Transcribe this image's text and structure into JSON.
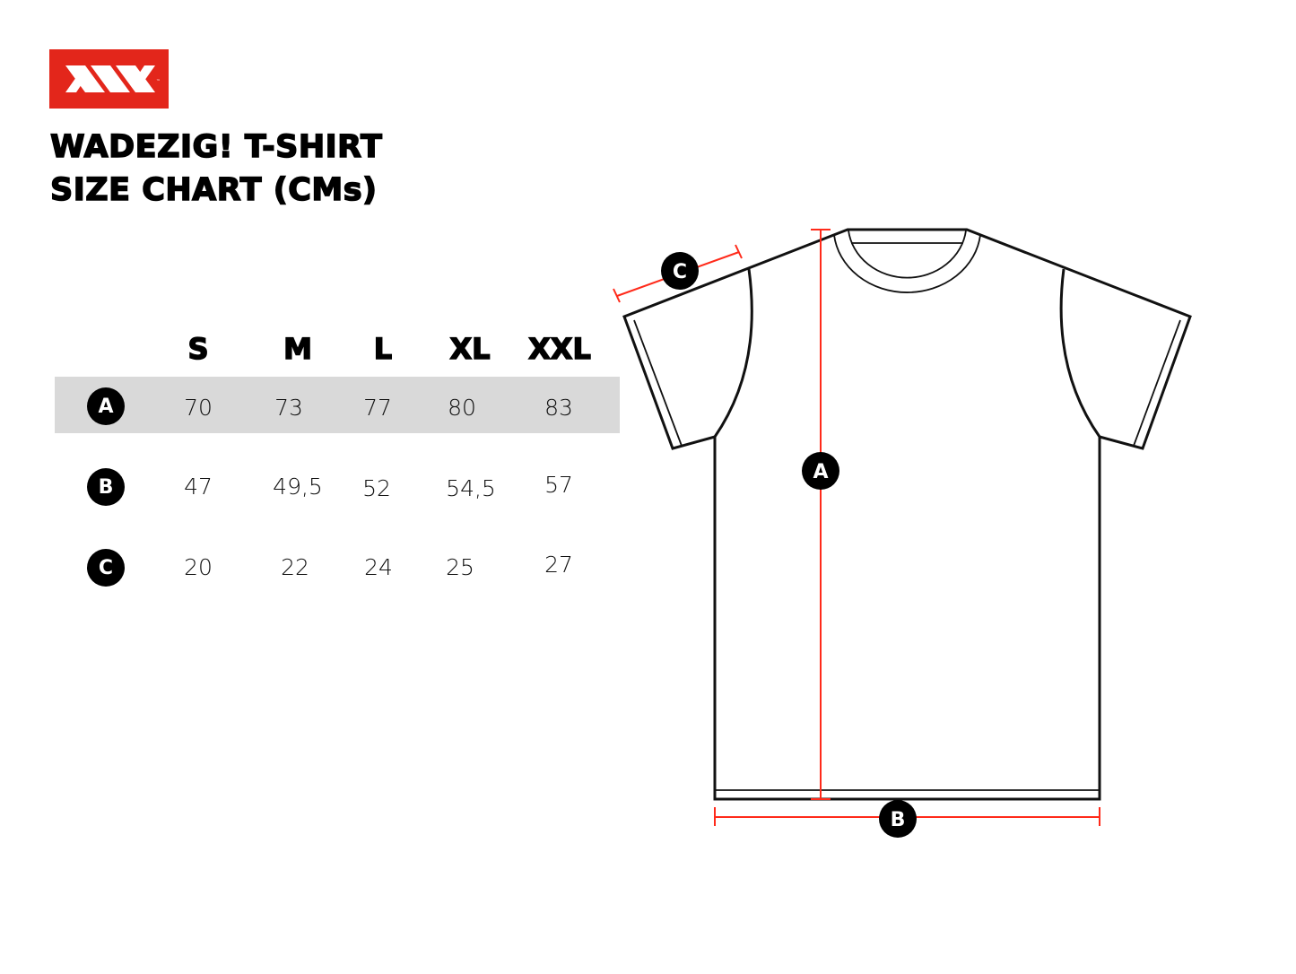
{
  "brand": {
    "logo_text": "™",
    "color": "#e3261b"
  },
  "title": {
    "line1": "WADEZIG! T-SHIRT",
    "line2": "SIZE CHART (CMs)"
  },
  "table": {
    "sizes": [
      "S",
      "M",
      "L",
      "XL",
      "XXL"
    ],
    "rows": [
      {
        "label": "A",
        "values": [
          "70",
          "73",
          "77",
          "80",
          "83"
        ]
      },
      {
        "label": "B",
        "values": [
          "47",
          "49,5",
          "52",
          "54,5",
          "57"
        ]
      },
      {
        "label": "C",
        "values": [
          "20",
          "22",
          "24",
          "25",
          "27"
        ]
      }
    ]
  },
  "diagram": {
    "markers": {
      "a": "A",
      "b": "B",
      "c": "C"
    },
    "measure_color": "#ff2a1a"
  }
}
